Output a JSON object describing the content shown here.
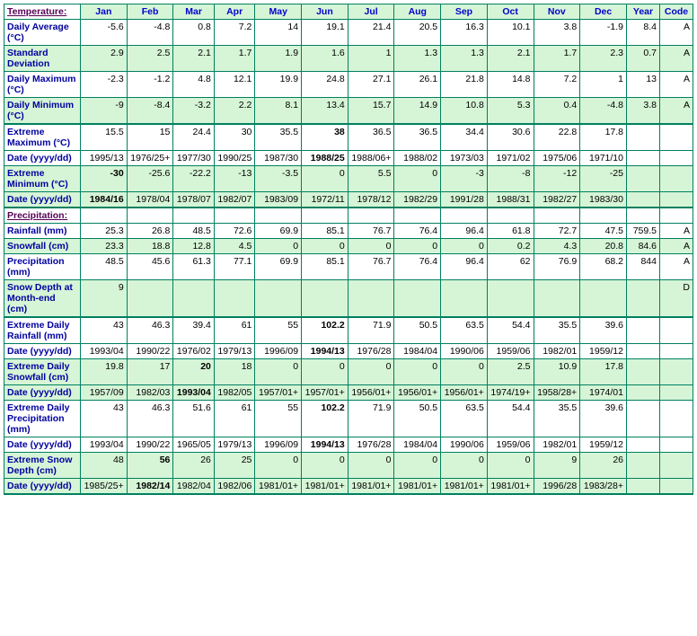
{
  "headers": {
    "section_temp": "Temperature:",
    "section_precip": "Precipitation:",
    "months": [
      "Jan",
      "Feb",
      "Mar",
      "Apr",
      "May",
      "Jun",
      "Jul",
      "Aug",
      "Sep",
      "Oct",
      "Nov",
      "Dec"
    ],
    "year": "Year",
    "code": "Code"
  },
  "temp_rows": [
    {
      "label": "Daily Average (°C)",
      "shade": false,
      "thickTop": false,
      "thickBot": false,
      "cells": [
        {
          "v": "-5.6"
        },
        {
          "v": "-4.8"
        },
        {
          "v": "0.8"
        },
        {
          "v": "7.2"
        },
        {
          "v": "14"
        },
        {
          "v": "19.1"
        },
        {
          "v": "21.4"
        },
        {
          "v": "20.5"
        },
        {
          "v": "16.3"
        },
        {
          "v": "10.1"
        },
        {
          "v": "3.8"
        },
        {
          "v": "-1.9"
        },
        {
          "v": "8.4"
        },
        {
          "v": "A"
        }
      ]
    },
    {
      "label": "Standard Deviation",
      "shade": true,
      "thickTop": false,
      "thickBot": false,
      "cells": [
        {
          "v": "2.9"
        },
        {
          "v": "2.5"
        },
        {
          "v": "2.1"
        },
        {
          "v": "1.7"
        },
        {
          "v": "1.9"
        },
        {
          "v": "1.6"
        },
        {
          "v": "1"
        },
        {
          "v": "1.3"
        },
        {
          "v": "1.3"
        },
        {
          "v": "2.1"
        },
        {
          "v": "1.7"
        },
        {
          "v": "2.3"
        },
        {
          "v": "0.7"
        },
        {
          "v": "A"
        }
      ]
    },
    {
      "label": "Daily Maximum (°C)",
      "shade": false,
      "thickTop": false,
      "thickBot": false,
      "cells": [
        {
          "v": "-2.3"
        },
        {
          "v": "-1.2"
        },
        {
          "v": "4.8"
        },
        {
          "v": "12.1"
        },
        {
          "v": "19.9"
        },
        {
          "v": "24.8"
        },
        {
          "v": "27.1"
        },
        {
          "v": "26.1"
        },
        {
          "v": "21.8"
        },
        {
          "v": "14.8"
        },
        {
          "v": "7.2"
        },
        {
          "v": "1"
        },
        {
          "v": "13"
        },
        {
          "v": "A"
        }
      ]
    },
    {
      "label": "Daily Minimum (°C)",
      "shade": true,
      "thickTop": false,
      "thickBot": true,
      "cells": [
        {
          "v": "-9"
        },
        {
          "v": "-8.4"
        },
        {
          "v": "-3.2"
        },
        {
          "v": "2.2"
        },
        {
          "v": "8.1"
        },
        {
          "v": "13.4"
        },
        {
          "v": "15.7"
        },
        {
          "v": "14.9"
        },
        {
          "v": "10.8"
        },
        {
          "v": "5.3"
        },
        {
          "v": "0.4"
        },
        {
          "v": "-4.8"
        },
        {
          "v": "3.8"
        },
        {
          "v": "A"
        }
      ]
    },
    {
      "label": "Extreme Maximum (°C)",
      "shade": false,
      "thickTop": true,
      "thickBot": false,
      "cells": [
        {
          "v": "15.5"
        },
        {
          "v": "15"
        },
        {
          "v": "24.4"
        },
        {
          "v": "30"
        },
        {
          "v": "35.5"
        },
        {
          "v": "38",
          "b": true
        },
        {
          "v": "36.5"
        },
        {
          "v": "36.5"
        },
        {
          "v": "34.4"
        },
        {
          "v": "30.6"
        },
        {
          "v": "22.8"
        },
        {
          "v": "17.8"
        },
        {
          "v": ""
        },
        {
          "v": ""
        }
      ]
    },
    {
      "label": "Date (yyyy/dd)",
      "shade": false,
      "thickTop": false,
      "thickBot": false,
      "cells": [
        {
          "v": "1995/13"
        },
        {
          "v": "1976/25+"
        },
        {
          "v": "1977/30"
        },
        {
          "v": "1990/25"
        },
        {
          "v": "1987/30"
        },
        {
          "v": "1988/25",
          "b": true
        },
        {
          "v": "1988/06+"
        },
        {
          "v": "1988/02"
        },
        {
          "v": "1973/03"
        },
        {
          "v": "1971/02"
        },
        {
          "v": "1975/06"
        },
        {
          "v": "1971/10"
        },
        {
          "v": ""
        },
        {
          "v": ""
        }
      ]
    },
    {
      "label": "Extreme Minimum (°C)",
      "shade": true,
      "thickTop": false,
      "thickBot": false,
      "cells": [
        {
          "v": "-30",
          "b": true
        },
        {
          "v": "-25.6"
        },
        {
          "v": "-22.2"
        },
        {
          "v": "-13"
        },
        {
          "v": "-3.5"
        },
        {
          "v": "0"
        },
        {
          "v": "5.5"
        },
        {
          "v": "0"
        },
        {
          "v": "-3"
        },
        {
          "v": "-8"
        },
        {
          "v": "-12"
        },
        {
          "v": "-25"
        },
        {
          "v": ""
        },
        {
          "v": ""
        }
      ]
    },
    {
      "label": "Date (yyyy/dd)",
      "shade": true,
      "thickTop": false,
      "thickBot": true,
      "cells": [
        {
          "v": "1984/16",
          "b": true
        },
        {
          "v": "1978/04"
        },
        {
          "v": "1978/07"
        },
        {
          "v": "1982/07"
        },
        {
          "v": "1983/09"
        },
        {
          "v": "1972/11"
        },
        {
          "v": "1978/12"
        },
        {
          "v": "1982/29"
        },
        {
          "v": "1991/28"
        },
        {
          "v": "1988/31"
        },
        {
          "v": "1982/27"
        },
        {
          "v": "1983/30"
        },
        {
          "v": ""
        },
        {
          "v": ""
        }
      ]
    }
  ],
  "precip_rows": [
    {
      "label": "Rainfall (mm)",
      "shade": false,
      "thickTop": false,
      "thickBot": false,
      "cells": [
        {
          "v": "25.3"
        },
        {
          "v": "26.8"
        },
        {
          "v": "48.5"
        },
        {
          "v": "72.6"
        },
        {
          "v": "69.9"
        },
        {
          "v": "85.1"
        },
        {
          "v": "76.7"
        },
        {
          "v": "76.4"
        },
        {
          "v": "96.4"
        },
        {
          "v": "61.8"
        },
        {
          "v": "72.7"
        },
        {
          "v": "47.5"
        },
        {
          "v": "759.5"
        },
        {
          "v": "A"
        }
      ]
    },
    {
      "label": "Snowfall (cm)",
      "shade": true,
      "thickTop": false,
      "thickBot": false,
      "cells": [
        {
          "v": "23.3"
        },
        {
          "v": "18.8"
        },
        {
          "v": "12.8"
        },
        {
          "v": "4.5"
        },
        {
          "v": "0"
        },
        {
          "v": "0"
        },
        {
          "v": "0"
        },
        {
          "v": "0"
        },
        {
          "v": "0"
        },
        {
          "v": "0.2"
        },
        {
          "v": "4.3"
        },
        {
          "v": "20.8"
        },
        {
          "v": "84.6"
        },
        {
          "v": "A"
        }
      ]
    },
    {
      "label": "Precipitation (mm)",
      "shade": false,
      "thickTop": false,
      "thickBot": false,
      "cells": [
        {
          "v": "48.5"
        },
        {
          "v": "45.6"
        },
        {
          "v": "61.3"
        },
        {
          "v": "77.1"
        },
        {
          "v": "69.9"
        },
        {
          "v": "85.1"
        },
        {
          "v": "76.7"
        },
        {
          "v": "76.4"
        },
        {
          "v": "96.4"
        },
        {
          "v": "62"
        },
        {
          "v": "76.9"
        },
        {
          "v": "68.2"
        },
        {
          "v": "844"
        },
        {
          "v": "A"
        }
      ]
    },
    {
      "label": "Snow Depth at Month-end (cm)",
      "shade": true,
      "thickTop": false,
      "thickBot": true,
      "cells": [
        {
          "v": "9"
        },
        {
          "v": ""
        },
        {
          "v": ""
        },
        {
          "v": ""
        },
        {
          "v": ""
        },
        {
          "v": ""
        },
        {
          "v": ""
        },
        {
          "v": ""
        },
        {
          "v": ""
        },
        {
          "v": ""
        },
        {
          "v": ""
        },
        {
          "v": ""
        },
        {
          "v": ""
        },
        {
          "v": "D"
        }
      ]
    },
    {
      "label": "Extreme Daily Rainfall (mm)",
      "shade": false,
      "thickTop": true,
      "thickBot": false,
      "cells": [
        {
          "v": "43"
        },
        {
          "v": "46.3"
        },
        {
          "v": "39.4"
        },
        {
          "v": "61"
        },
        {
          "v": "55"
        },
        {
          "v": "102.2",
          "b": true
        },
        {
          "v": "71.9"
        },
        {
          "v": "50.5"
        },
        {
          "v": "63.5"
        },
        {
          "v": "54.4"
        },
        {
          "v": "35.5"
        },
        {
          "v": "39.6"
        },
        {
          "v": ""
        },
        {
          "v": ""
        }
      ]
    },
    {
      "label": "Date (yyyy/dd)",
      "shade": false,
      "thickTop": false,
      "thickBot": false,
      "cells": [
        {
          "v": "1993/04"
        },
        {
          "v": "1990/22"
        },
        {
          "v": "1976/02"
        },
        {
          "v": "1979/13"
        },
        {
          "v": "1996/09"
        },
        {
          "v": "1994/13",
          "b": true
        },
        {
          "v": "1976/28"
        },
        {
          "v": "1984/04"
        },
        {
          "v": "1990/06"
        },
        {
          "v": "1959/06"
        },
        {
          "v": "1982/01"
        },
        {
          "v": "1959/12"
        },
        {
          "v": ""
        },
        {
          "v": ""
        }
      ]
    },
    {
      "label": "Extreme Daily Snowfall (cm)",
      "shade": true,
      "thickTop": false,
      "thickBot": false,
      "cells": [
        {
          "v": "19.8"
        },
        {
          "v": "17"
        },
        {
          "v": "20",
          "b": true
        },
        {
          "v": "18"
        },
        {
          "v": "0"
        },
        {
          "v": "0"
        },
        {
          "v": "0"
        },
        {
          "v": "0"
        },
        {
          "v": "0"
        },
        {
          "v": "2.5"
        },
        {
          "v": "10.9"
        },
        {
          "v": "17.8"
        },
        {
          "v": ""
        },
        {
          "v": ""
        }
      ]
    },
    {
      "label": "Date (yyyy/dd)",
      "shade": true,
      "thickTop": false,
      "thickBot": false,
      "cells": [
        {
          "v": "1957/09"
        },
        {
          "v": "1982/03"
        },
        {
          "v": "1993/04",
          "b": true
        },
        {
          "v": "1982/05"
        },
        {
          "v": "1957/01+"
        },
        {
          "v": "1957/01+"
        },
        {
          "v": "1956/01+"
        },
        {
          "v": "1956/01+"
        },
        {
          "v": "1956/01+"
        },
        {
          "v": "1974/19+"
        },
        {
          "v": "1958/28+"
        },
        {
          "v": "1974/01"
        },
        {
          "v": ""
        },
        {
          "v": ""
        }
      ]
    },
    {
      "label": "Extreme Daily Precipitation (mm)",
      "shade": false,
      "thickTop": false,
      "thickBot": false,
      "cells": [
        {
          "v": "43"
        },
        {
          "v": "46.3"
        },
        {
          "v": "51.6"
        },
        {
          "v": "61"
        },
        {
          "v": "55"
        },
        {
          "v": "102.2",
          "b": true
        },
        {
          "v": "71.9"
        },
        {
          "v": "50.5"
        },
        {
          "v": "63.5"
        },
        {
          "v": "54.4"
        },
        {
          "v": "35.5"
        },
        {
          "v": "39.6"
        },
        {
          "v": ""
        },
        {
          "v": ""
        }
      ]
    },
    {
      "label": "Date (yyyy/dd)",
      "shade": false,
      "thickTop": false,
      "thickBot": false,
      "cells": [
        {
          "v": "1993/04"
        },
        {
          "v": "1990/22"
        },
        {
          "v": "1965/05"
        },
        {
          "v": "1979/13"
        },
        {
          "v": "1996/09"
        },
        {
          "v": "1994/13",
          "b": true
        },
        {
          "v": "1976/28"
        },
        {
          "v": "1984/04"
        },
        {
          "v": "1990/06"
        },
        {
          "v": "1959/06"
        },
        {
          "v": "1982/01"
        },
        {
          "v": "1959/12"
        },
        {
          "v": ""
        },
        {
          "v": ""
        }
      ]
    },
    {
      "label": "Extreme Snow Depth (cm)",
      "shade": true,
      "thickTop": false,
      "thickBot": false,
      "cells": [
        {
          "v": "48"
        },
        {
          "v": "56",
          "b": true
        },
        {
          "v": "26"
        },
        {
          "v": "25"
        },
        {
          "v": "0"
        },
        {
          "v": "0"
        },
        {
          "v": "0"
        },
        {
          "v": "0"
        },
        {
          "v": "0"
        },
        {
          "v": "0"
        },
        {
          "v": "9"
        },
        {
          "v": "26"
        },
        {
          "v": ""
        },
        {
          "v": ""
        }
      ]
    },
    {
      "label": "Date (yyyy/dd)",
      "shade": true,
      "thickTop": false,
      "thickBot": true,
      "cells": [
        {
          "v": "1985/25+"
        },
        {
          "v": "1982/14",
          "b": true
        },
        {
          "v": "1982/04"
        },
        {
          "v": "1982/06"
        },
        {
          "v": "1981/01+"
        },
        {
          "v": "1981/01+"
        },
        {
          "v": "1981/01+"
        },
        {
          "v": "1981/01+"
        },
        {
          "v": "1981/01+"
        },
        {
          "v": "1981/01+"
        },
        {
          "v": "1996/28"
        },
        {
          "v": "1983/28+"
        },
        {
          "v": ""
        },
        {
          "v": ""
        }
      ]
    }
  ]
}
